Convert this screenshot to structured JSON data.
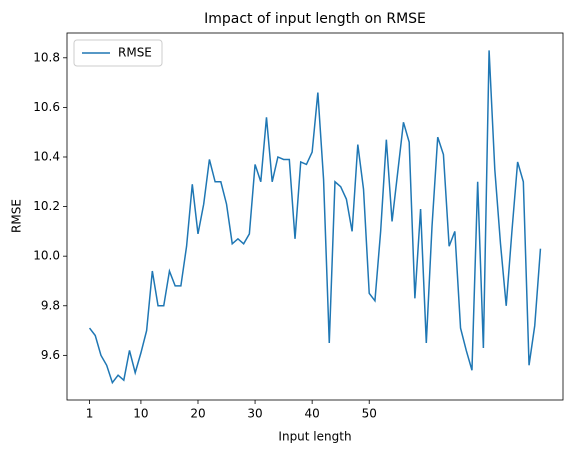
{
  "chart_data": {
    "type": "line",
    "title": "Impact of input length on RMSE",
    "x_label": "Input length",
    "y_label": "RMSE",
    "x": [
      1,
      2,
      3,
      4,
      5,
      6,
      7,
      8,
      9,
      10,
      11,
      12,
      13,
      14,
      15,
      16,
      17,
      18,
      19,
      20,
      21,
      22,
      23,
      24,
      25,
      26,
      27,
      28,
      29,
      30,
      31,
      32,
      33,
      34,
      35,
      36,
      37,
      38,
      39,
      40,
      41,
      42,
      43,
      44,
      45,
      46,
      47,
      48,
      49,
      50,
      51,
      52,
      53,
      54,
      55,
      56,
      57,
      58,
      59,
      60,
      61,
      62,
      63,
      64,
      65,
      66,
      67,
      68,
      69,
      70,
      71,
      72,
      73,
      74,
      75,
      76,
      77,
      78,
      79,
      80
    ],
    "series": [
      {
        "name": "RMSE",
        "color": "#1f77b4",
        "values": [
          9.71,
          9.68,
          9.6,
          9.56,
          9.49,
          9.52,
          9.5,
          9.62,
          9.53,
          9.61,
          9.7,
          9.94,
          9.8,
          9.8,
          9.94,
          9.88,
          9.88,
          10.04,
          10.29,
          10.09,
          10.21,
          10.39,
          10.3,
          10.3,
          10.21,
          10.05,
          10.07,
          10.05,
          10.09,
          10.37,
          10.3,
          10.56,
          10.3,
          10.4,
          10.39,
          10.39,
          10.07,
          10.38,
          10.37,
          10.42,
          10.66,
          10.31,
          9.65,
          10.3,
          10.28,
          10.23,
          10.1,
          10.45,
          10.27,
          9.85,
          9.82,
          10.1,
          10.47,
          10.14,
          10.34,
          10.54,
          10.46,
          9.83,
          10.19,
          9.65,
          10.12,
          10.48,
          10.41,
          10.04,
          10.1,
          9.71,
          9.62,
          9.54,
          10.3,
          9.63,
          10.83,
          10.35,
          10.05,
          9.8,
          10.1,
          10.38,
          10.3,
          9.56,
          9.72,
          10.03
        ]
      }
    ],
    "xlim": [
      -2.95,
      83.95
    ],
    "xticks": [
      1,
      10,
      20,
      30,
      40,
      50
    ],
    "ylim": [
      9.42,
      10.9
    ],
    "yticks": [
      9.6,
      9.8,
      {
        "value": 10.0,
        "label": "10.0"
      },
      10.2,
      10.4,
      10.6,
      10.8
    ],
    "grid": false,
    "legend": "upper left"
  }
}
